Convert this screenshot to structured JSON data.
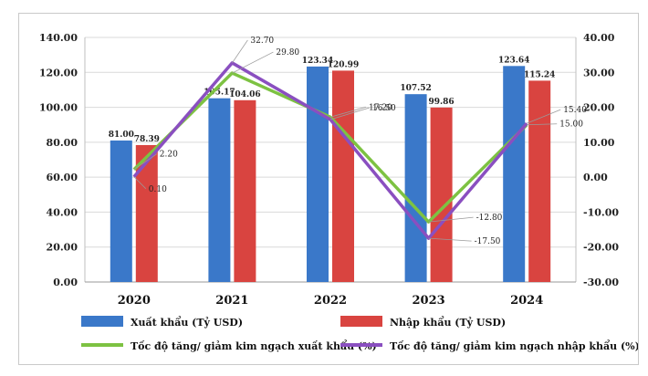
{
  "chart_data": {
    "type": "bar",
    "categories": [
      "2020",
      "2021",
      "2022",
      "2023",
      "2024"
    ],
    "series": [
      {
        "name": "Xuất khẩu (Tỷ USD)",
        "kind": "bar",
        "axis": "left",
        "color": "#3a78c9",
        "values": [
          81.0,
          105.17,
          123.34,
          107.52,
          123.64
        ],
        "labels": [
          "81.00",
          "105.17",
          "123.34",
          "107.52",
          "123.64"
        ]
      },
      {
        "name": "Nhập khẩu (Tỷ USD)",
        "kind": "bar",
        "axis": "left",
        "color": "#d94440",
        "values": [
          78.39,
          104.06,
          120.99,
          99.86,
          115.24
        ],
        "labels": [
          "78.39",
          "104.06",
          "120.99",
          "99.86",
          "115.24"
        ]
      },
      {
        "name": "Tốc độ tăng/ giảm kim ngạch xuất khẩu (%)",
        "kind": "line",
        "axis": "right",
        "color": "#7dc242",
        "values": [
          2.2,
          29.8,
          17.2,
          -12.8,
          15.0
        ],
        "labels": [
          "2.20",
          "29.80",
          "17.20",
          "-12.80",
          "15.00"
        ]
      },
      {
        "name": "Tốc độ tăng/ giảm kim ngạch nhập khẩu (%)",
        "kind": "line",
        "axis": "right",
        "color": "#8a4fc0",
        "values": [
          0.1,
          32.7,
          16.5,
          -17.5,
          15.4
        ],
        "labels": [
          "0.10",
          "32.70",
          "16.50",
          "-17.50",
          "15.40"
        ]
      }
    ],
    "y_left": {
      "ylim": [
        0,
        140
      ],
      "ticks": [
        "0.00",
        "20.00",
        "40.00",
        "60.00",
        "80.00",
        "100.00",
        "120.00",
        "140.00"
      ]
    },
    "y_right": {
      "ylim": [
        -30,
        40
      ],
      "ticks": [
        "-30.00",
        "-20.00",
        "-10.00",
        "0.00",
        "10.00",
        "20.00",
        "30.00",
        "40.00"
      ]
    },
    "grid": true,
    "legend": "bottom"
  }
}
